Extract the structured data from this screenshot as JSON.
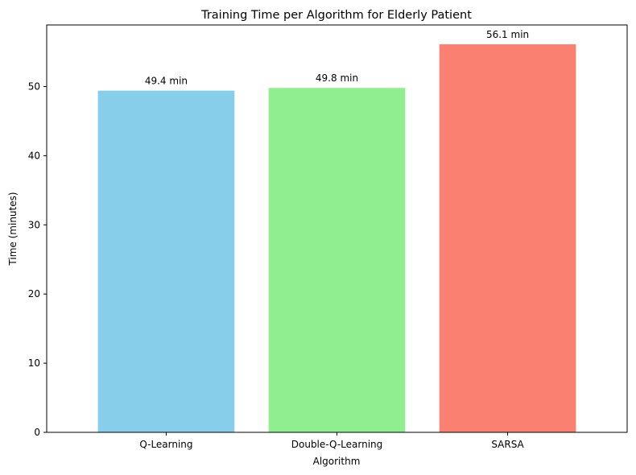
{
  "chart_data": {
    "type": "bar",
    "title": "Training Time per Algorithm for Elderly Patient",
    "xlabel": "Algorithm",
    "ylabel": "Time (minutes)",
    "categories": [
      "Q-Learning",
      "Double-Q-Learning",
      "SARSA"
    ],
    "values": [
      49.4,
      49.8,
      56.1
    ],
    "data_labels": [
      "49.4 min",
      "49.8 min",
      "56.1 min"
    ],
    "bar_colors": [
      "#87ceeb",
      "#90ee90",
      "#fa8072"
    ],
    "ylim": [
      0,
      58.9
    ],
    "yticks": [
      0,
      10,
      20,
      30,
      40,
      50
    ],
    "ytick_labels": [
      "0",
      "10",
      "20",
      "30",
      "40",
      "50"
    ],
    "grid": false,
    "legend": "none"
  }
}
